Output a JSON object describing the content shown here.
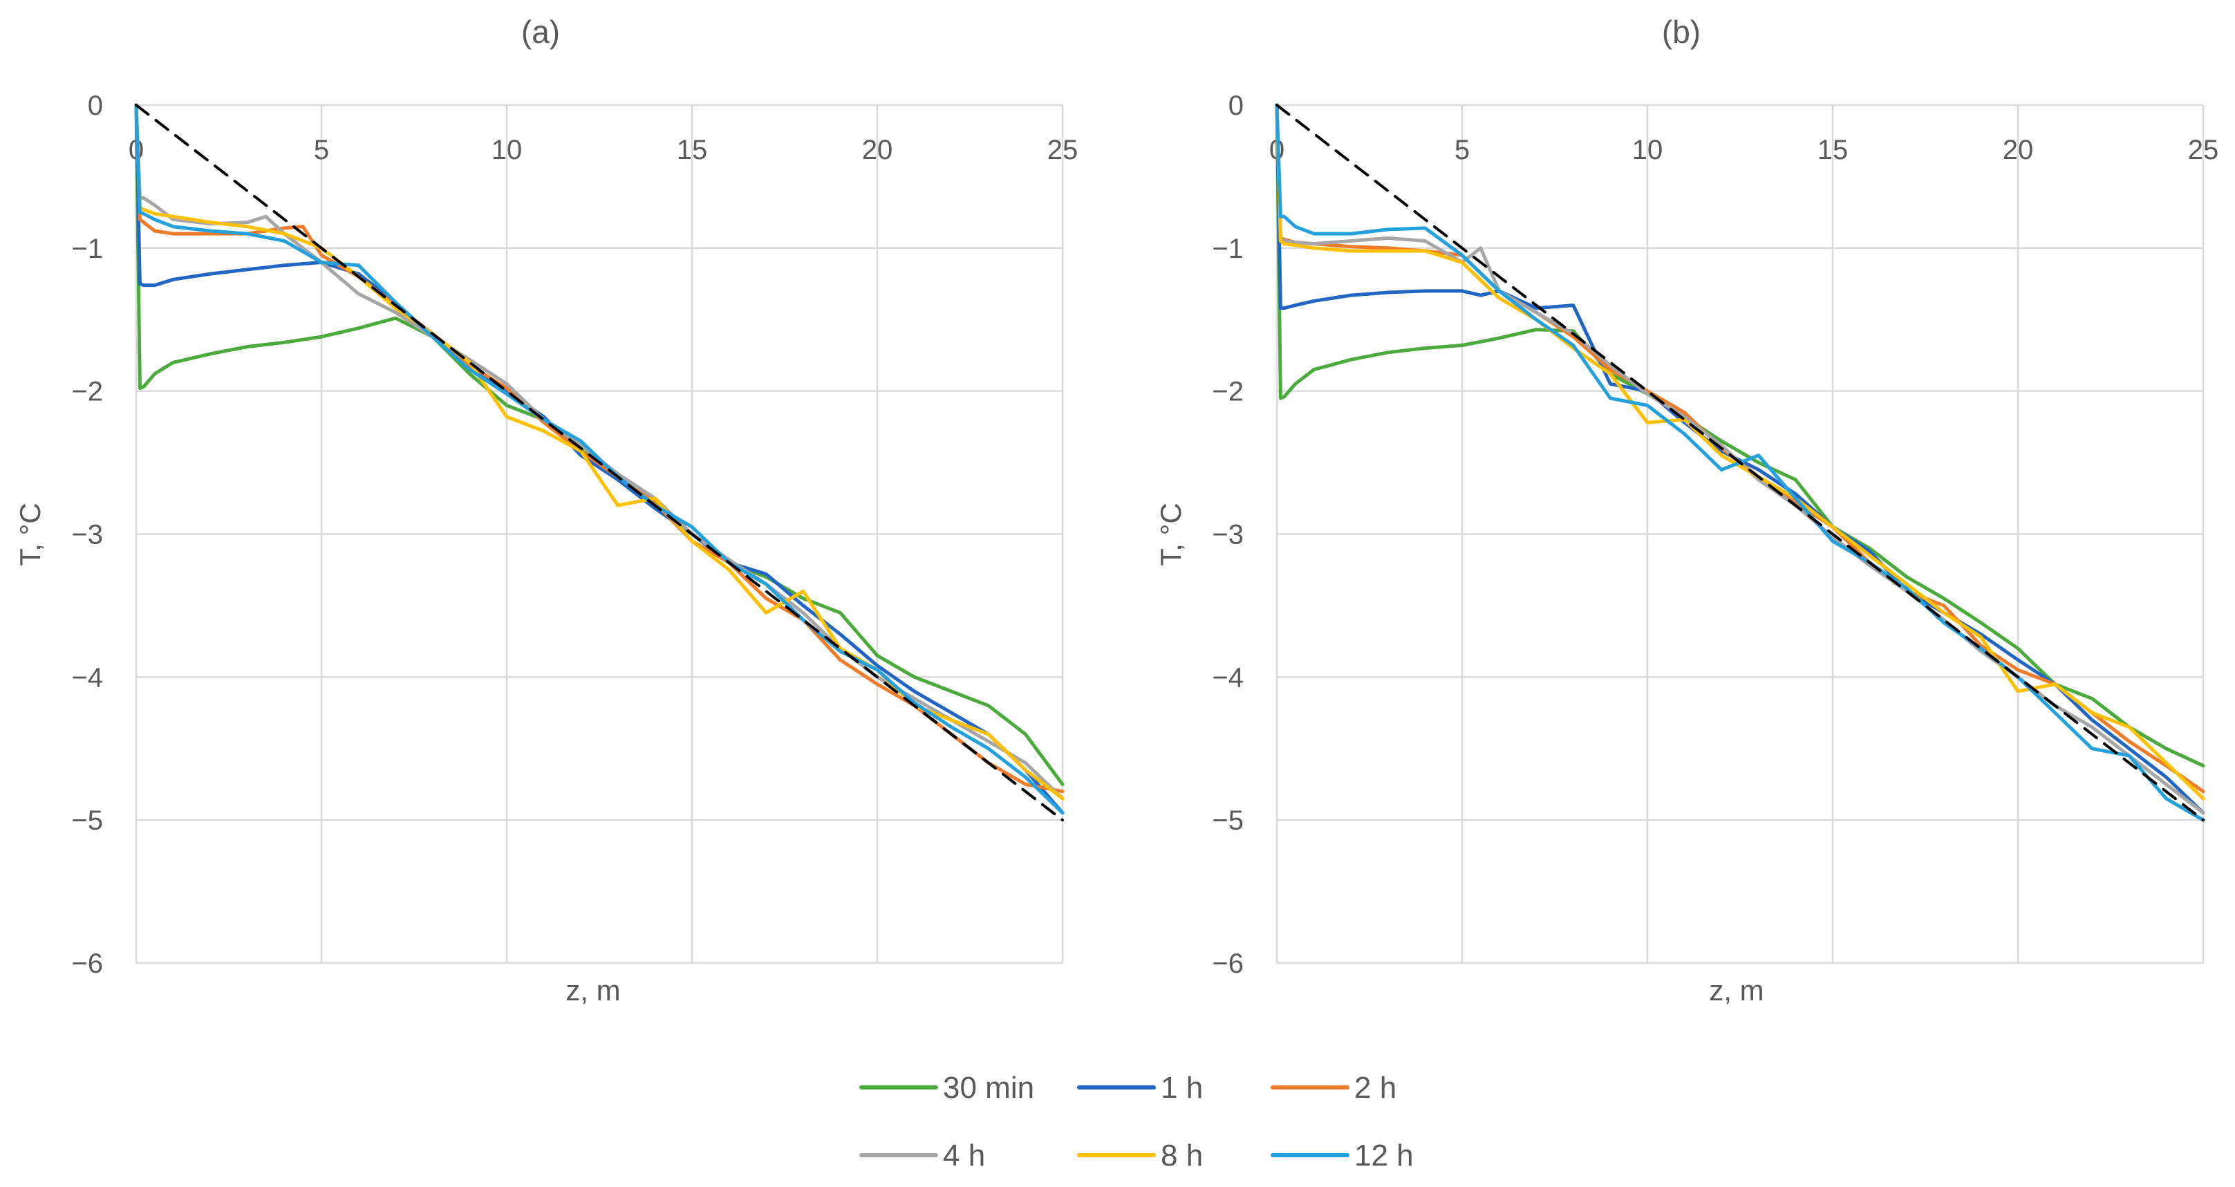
{
  "chart_data": [
    {
      "panel": "a",
      "type": "line",
      "title": "(a)",
      "xlabel": "z, m",
      "ylabel": "T, °C",
      "xlim": [
        0,
        25
      ],
      "ylim": [
        -6,
        0
      ],
      "xticks": [
        "0",
        "5",
        "10",
        "15",
        "20",
        "25"
      ],
      "yticks": [
        "0",
        "−1",
        "−2",
        "−3",
        "−4",
        "−5",
        "−6"
      ],
      "grid": true,
      "series": [
        {
          "name": "30 min",
          "x": [
            0,
            0.1,
            0.2,
            0.5,
            1,
            2,
            3,
            4,
            5,
            6,
            7,
            8,
            9,
            10,
            11,
            12,
            13,
            14,
            15,
            16,
            17,
            18,
            19,
            20,
            21,
            22,
            23,
            24,
            25
          ],
          "y": [
            0,
            -1.98,
            -1.97,
            -1.88,
            -1.8,
            -1.74,
            -1.69,
            -1.66,
            -1.62,
            -1.56,
            -1.49,
            -1.62,
            -1.88,
            -2.1,
            -2.2,
            -2.4,
            -2.62,
            -2.8,
            -3.0,
            -3.2,
            -3.3,
            -3.45,
            -3.55,
            -3.85,
            -4.0,
            -4.1,
            -4.2,
            -4.4,
            -4.75
          ]
        },
        {
          "name": "1 h",
          "x": [
            0,
            0.1,
            0.2,
            0.5,
            1,
            2,
            3,
            4,
            5,
            6,
            7,
            8,
            9,
            10,
            11,
            12,
            13,
            14,
            15,
            16,
            17,
            18,
            19,
            20,
            21,
            22,
            23,
            24,
            25
          ],
          "y": [
            0,
            -1.25,
            -1.26,
            -1.26,
            -1.22,
            -1.18,
            -1.15,
            -1.12,
            -1.1,
            -1.18,
            -1.38,
            -1.62,
            -1.82,
            -2.0,
            -2.18,
            -2.45,
            -2.62,
            -2.82,
            -3.0,
            -3.2,
            -3.28,
            -3.5,
            -3.7,
            -3.92,
            -4.1,
            -4.25,
            -4.4,
            -4.65,
            -4.95
          ]
        },
        {
          "name": "2 h",
          "x": [
            0,
            0.1,
            0.2,
            0.5,
            1,
            2,
            3,
            4,
            4.5,
            5,
            6,
            7,
            8,
            9,
            10,
            11,
            12,
            13,
            14,
            15,
            16,
            17,
            18,
            19,
            20,
            21,
            22,
            23,
            24,
            25
          ],
          "y": [
            0,
            -0.8,
            -0.82,
            -0.88,
            -0.9,
            -0.9,
            -0.9,
            -0.86,
            -0.85,
            -1.05,
            -1.2,
            -1.4,
            -1.6,
            -1.82,
            -1.98,
            -2.22,
            -2.42,
            -2.6,
            -2.78,
            -3.05,
            -3.2,
            -3.45,
            -3.6,
            -3.88,
            -4.05,
            -4.2,
            -4.4,
            -4.6,
            -4.75,
            -4.8
          ]
        },
        {
          "name": "4 h",
          "x": [
            0,
            0.1,
            0.2,
            0.5,
            1,
            2,
            3,
            3.5,
            4,
            5,
            6,
            7,
            8,
            9,
            10,
            11,
            12,
            13,
            14,
            15,
            16,
            17,
            18,
            19,
            20,
            21,
            22,
            23,
            24,
            25
          ],
          "y": [
            0,
            -0.65,
            -0.65,
            -0.7,
            -0.8,
            -0.83,
            -0.82,
            -0.78,
            -0.9,
            -1.1,
            -1.32,
            -1.45,
            -1.62,
            -1.78,
            -1.95,
            -2.2,
            -2.38,
            -2.58,
            -2.75,
            -3.0,
            -3.18,
            -3.35,
            -3.55,
            -3.8,
            -4.0,
            -4.15,
            -4.3,
            -4.45,
            -4.6,
            -4.85
          ]
        },
        {
          "name": "8 h",
          "x": [
            0,
            0.1,
            0.2,
            0.5,
            1,
            2,
            3,
            4,
            5,
            6,
            7,
            8,
            9,
            10,
            11,
            12,
            13,
            14,
            15,
            16,
            17,
            18,
            19,
            20,
            21,
            22,
            23,
            24,
            25
          ],
          "y": [
            0,
            -0.72,
            -0.73,
            -0.76,
            -0.78,
            -0.82,
            -0.85,
            -0.9,
            -1.0,
            -1.2,
            -1.42,
            -1.6,
            -1.8,
            -2.18,
            -2.28,
            -2.42,
            -2.8,
            -2.75,
            -3.05,
            -3.25,
            -3.55,
            -3.4,
            -3.8,
            -3.95,
            -4.2,
            -4.3,
            -4.4,
            -4.65,
            -4.85
          ]
        },
        {
          "name": "12 h",
          "x": [
            0,
            0.1,
            0.2,
            0.5,
            1,
            2,
            3,
            4,
            5,
            6,
            7,
            8,
            9,
            10,
            11,
            12,
            13,
            14,
            15,
            16,
            17,
            18,
            19,
            20,
            21,
            22,
            23,
            24,
            25
          ],
          "y": [
            0,
            -0.75,
            -0.76,
            -0.8,
            -0.85,
            -0.88,
            -0.9,
            -0.95,
            -1.1,
            -1.12,
            -1.38,
            -1.62,
            -1.85,
            -2.02,
            -2.2,
            -2.35,
            -2.6,
            -2.8,
            -2.95,
            -3.2,
            -3.35,
            -3.6,
            -3.82,
            -3.95,
            -4.18,
            -4.35,
            -4.5,
            -4.7,
            -4.95
          ]
        },
        {
          "name": "reference",
          "style": "dashed",
          "x": [
            0,
            25
          ],
          "y": [
            0,
            -5
          ]
        }
      ]
    },
    {
      "panel": "b",
      "type": "line",
      "title": "(b)",
      "xlabel": "z, m",
      "ylabel": "T, °C",
      "xlim": [
        0,
        25
      ],
      "ylim": [
        -6,
        0
      ],
      "xticks": [
        "0",
        "5",
        "10",
        "15",
        "20",
        "25"
      ],
      "yticks": [
        "0",
        "−1",
        "−2",
        "−3",
        "−4",
        "−5",
        "−6"
      ],
      "grid": true,
      "series": [
        {
          "name": "30 min",
          "x": [
            0,
            0.1,
            0.2,
            0.5,
            1,
            2,
            3,
            4,
            5,
            6,
            7,
            8,
            9,
            10,
            11,
            12,
            13,
            14,
            15,
            16,
            17,
            18,
            19,
            20,
            21,
            22,
            23,
            24,
            25
          ],
          "y": [
            0,
            -2.05,
            -2.04,
            -1.95,
            -1.85,
            -1.78,
            -1.73,
            -1.7,
            -1.68,
            -1.63,
            -1.57,
            -1.58,
            -1.88,
            -2.02,
            -2.18,
            -2.35,
            -2.5,
            -2.62,
            -2.95,
            -3.1,
            -3.3,
            -3.45,
            -3.62,
            -3.8,
            -4.05,
            -4.15,
            -4.35,
            -4.5,
            -4.62
          ]
        },
        {
          "name": "1 h",
          "x": [
            0,
            0.1,
            0.2,
            0.5,
            1,
            2,
            3,
            4,
            5,
            5.5,
            6,
            7,
            8,
            9,
            10,
            11,
            12,
            13,
            14,
            15,
            16,
            17,
            18,
            19,
            20,
            21,
            22,
            23,
            24,
            25
          ],
          "y": [
            0,
            -1.42,
            -1.42,
            -1.4,
            -1.37,
            -1.33,
            -1.31,
            -1.3,
            -1.3,
            -1.33,
            -1.3,
            -1.42,
            -1.4,
            -1.95,
            -2.0,
            -2.22,
            -2.42,
            -2.55,
            -2.72,
            -2.95,
            -3.12,
            -3.4,
            -3.55,
            -3.7,
            -3.88,
            -4.05,
            -4.3,
            -4.5,
            -4.7,
            -4.95
          ]
        },
        {
          "name": "2 h",
          "x": [
            0,
            0.1,
            0.2,
            0.5,
            1,
            2,
            3,
            4,
            5,
            6,
            7,
            8,
            9,
            10,
            11,
            12,
            13,
            14,
            15,
            16,
            17,
            18,
            19,
            20,
            21,
            22,
            23,
            24,
            25
          ],
          "y": [
            0,
            -0.93,
            -0.94,
            -0.96,
            -0.97,
            -0.99,
            -1.0,
            -1.02,
            -1.05,
            -1.3,
            -1.45,
            -1.62,
            -1.85,
            -2.0,
            -2.15,
            -2.4,
            -2.6,
            -2.78,
            -2.95,
            -3.2,
            -3.4,
            -3.5,
            -3.78,
            -3.95,
            -4.05,
            -4.25,
            -4.45,
            -4.62,
            -4.8
          ]
        },
        {
          "name": "4 h",
          "x": [
            0,
            0.1,
            0.2,
            0.5,
            1,
            2,
            3,
            4,
            5,
            5.5,
            6,
            7,
            8,
            9,
            10,
            11,
            12,
            13,
            14,
            15,
            16,
            17,
            18,
            19,
            20,
            21,
            22,
            23,
            24,
            25
          ],
          "y": [
            0,
            -0.95,
            -0.95,
            -0.96,
            -0.97,
            -0.95,
            -0.93,
            -0.95,
            -1.1,
            -1.0,
            -1.3,
            -1.45,
            -1.6,
            -1.82,
            -2.02,
            -2.18,
            -2.38,
            -2.62,
            -2.8,
            -3.02,
            -3.22,
            -3.4,
            -3.6,
            -3.82,
            -4.0,
            -4.2,
            -4.35,
            -4.55,
            -4.75,
            -4.95
          ]
        },
        {
          "name": "8 h",
          "x": [
            0,
            0.1,
            0.2,
            0.5,
            1,
            2,
            3,
            4,
            5,
            6,
            7,
            8,
            9,
            10,
            11,
            12,
            13,
            14,
            15,
            16,
            17,
            18,
            19,
            20,
            21,
            22,
            23,
            24,
            25
          ],
          "y": [
            0,
            -0.95,
            -0.97,
            -0.98,
            -1.0,
            -1.02,
            -1.02,
            -1.02,
            -1.1,
            -1.35,
            -1.5,
            -1.7,
            -1.88,
            -2.22,
            -2.2,
            -2.45,
            -2.6,
            -2.75,
            -2.95,
            -3.15,
            -3.35,
            -3.55,
            -3.72,
            -4.1,
            -4.05,
            -4.25,
            -4.35,
            -4.6,
            -4.85
          ]
        },
        {
          "name": "12 h",
          "x": [
            0,
            0.1,
            0.2,
            0.5,
            1,
            2,
            3,
            4,
            5,
            6,
            7,
            8,
            9,
            10,
            11,
            12,
            13,
            14,
            15,
            16,
            17,
            18,
            19,
            20,
            21,
            22,
            23,
            24,
            25
          ],
          "y": [
            0,
            -0.78,
            -0.78,
            -0.85,
            -0.9,
            -0.9,
            -0.87,
            -0.86,
            -1.05,
            -1.3,
            -1.5,
            -1.68,
            -2.05,
            -2.1,
            -2.3,
            -2.55,
            -2.45,
            -2.75,
            -3.05,
            -3.2,
            -3.38,
            -3.62,
            -3.8,
            -4.0,
            -4.25,
            -4.5,
            -4.55,
            -4.85,
            -5.0
          ]
        },
        {
          "name": "reference",
          "style": "dashed",
          "x": [
            0,
            25
          ],
          "y": [
            0,
            -5
          ]
        }
      ]
    }
  ],
  "colors": {
    "30 min": "#4aaa3c",
    "1 h": "#2166c4",
    "2 h": "#f07c2a",
    "4 h": "#a6a6a6",
    "8 h": "#ffc000",
    "12 h": "#24a0dc",
    "reference": "#000000",
    "grid": "#d9d9d9",
    "text": "#595959"
  },
  "legend": {
    "placement": "bottom-center",
    "entries": [
      "30 min",
      "1 h",
      "2 h",
      "4 h",
      "8 h",
      "12 h"
    ]
  }
}
